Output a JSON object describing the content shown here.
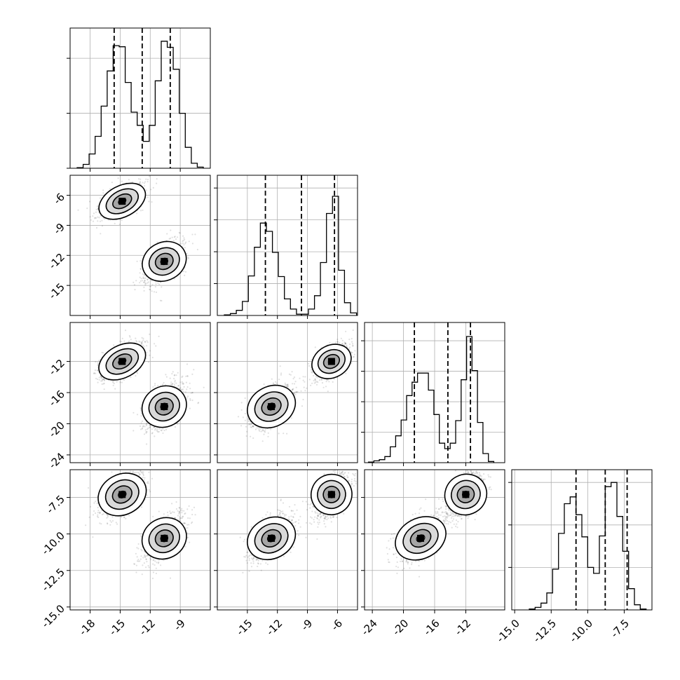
{
  "chart_data": {
    "type": "corner",
    "parameters": 4,
    "grid": true,
    "histograms": [
      {
        "param": 0,
        "range": [
          -20,
          -6
        ],
        "yticks": [
          0,
          1,
          2
        ],
        "ymax": 2.55,
        "bin_edges": [
          -19.3,
          -18.7,
          -18.1,
          -17.5,
          -16.9,
          -16.3,
          -15.7,
          -15.1,
          -14.5,
          -13.9,
          -13.3,
          -12.7,
          -12.1,
          -11.5,
          -10.9,
          -10.3,
          -9.7,
          -9.1,
          -8.5,
          -7.9,
          -7.3,
          -6.7
        ],
        "counts": [
          0.01,
          0.07,
          0.26,
          0.58,
          1.13,
          1.77,
          2.23,
          2.21,
          1.56,
          1.02,
          0.78,
          0.49,
          0.78,
          1.59,
          2.31,
          2.2,
          1.8,
          1.0,
          0.38,
          0.09,
          0.02
        ],
        "quantiles": [
          -15.6,
          -12.8,
          -10.0
        ]
      },
      {
        "param": 1,
        "range": [
          -18,
          -4
        ],
        "yticks": [
          0.5,
          1,
          1.5,
          2
        ],
        "ymax": 2.2,
        "bin_edges": [
          -17.3,
          -16.7,
          -16.1,
          -15.5,
          -14.9,
          -14.3,
          -13.7,
          -13.1,
          -12.5,
          -11.9,
          -11.3,
          -10.7,
          -10.1,
          -9.5,
          -8.9,
          -8.3,
          -7.7,
          -7.1,
          -6.5,
          -5.9,
          -5.3,
          -4.7,
          -4.1
        ],
        "counts": [
          0.01,
          0.03,
          0.08,
          0.22,
          0.62,
          1.07,
          1.45,
          1.32,
          0.99,
          0.61,
          0.26,
          0.1,
          0.02,
          0.02,
          0.1,
          0.31,
          0.83,
          1.6,
          1.87,
          0.71,
          0.2,
          0.04
        ],
        "quantiles": [
          -13.2,
          -9.6,
          -6.3
        ]
      },
      {
        "param": 2,
        "range": [
          -25,
          -7
        ],
        "yticks": [
          0.5,
          1,
          1.5,
          2
        ],
        "ymax": 2.3,
        "bin_edges": [
          -24.5,
          -23.8,
          -23.1,
          -22.4,
          -21.7,
          -21.0,
          -20.3,
          -19.6,
          -18.9,
          -18.2,
          -17.5,
          -16.8,
          -16.1,
          -15.4,
          -14.7,
          -14.0,
          -13.3,
          -12.6,
          -11.9,
          -11.2,
          -10.5,
          -9.8,
          -9.1,
          -8.4
        ],
        "counts": [
          0.01,
          0.03,
          0.05,
          0.1,
          0.26,
          0.44,
          0.7,
          1.1,
          1.32,
          1.47,
          1.47,
          1.19,
          0.79,
          0.32,
          0.23,
          0.32,
          0.69,
          1.36,
          2.07,
          1.51,
          0.66,
          0.15,
          0.02
        ],
        "quantiles": [
          -18.6,
          -14.3,
          -11.4
        ]
      },
      {
        "param": 3,
        "range": [
          -15.2,
          -5.6
        ],
        "yticks": [
          0.5,
          1,
          1.5
        ],
        "ymax": 1.65,
        "bin_edges": [
          -14.0,
          -13.6,
          -13.2,
          -12.8,
          -12.4,
          -12.0,
          -11.6,
          -11.2,
          -10.8,
          -10.4,
          -10.0,
          -9.6,
          -9.2,
          -8.8,
          -8.4,
          -8.0,
          -7.6,
          -7.2,
          -6.8,
          -6.4,
          -6.0
        ],
        "counts": [
          0.01,
          0.03,
          0.08,
          0.2,
          0.48,
          0.9,
          1.25,
          1.33,
          1.12,
          0.86,
          0.5,
          0.43,
          0.87,
          1.45,
          1.5,
          1.1,
          0.69,
          0.25,
          0.06,
          0.01
        ],
        "quantiles": [
          -10.8,
          -8.8,
          -7.3
        ]
      }
    ],
    "scatter_panels": [
      {
        "x_param": 0,
        "y_param": 1,
        "x_range": [
          -20,
          -6
        ],
        "y_range": [
          -18,
          -4
        ]
      },
      {
        "x_param": 0,
        "y_param": 2,
        "x_range": [
          -20,
          -6
        ],
        "y_range": [
          -25,
          -7
        ]
      },
      {
        "x_param": 1,
        "y_param": 2,
        "x_range": [
          -18,
          -4
        ],
        "y_range": [
          -25,
          -7
        ]
      },
      {
        "x_param": 0,
        "y_param": 3,
        "x_range": [
          -20,
          -6
        ],
        "y_range": [
          -15.2,
          -5.6
        ]
      },
      {
        "x_param": 1,
        "y_param": 3,
        "x_range": [
          -18,
          -4
        ],
        "y_range": [
          -15.2,
          -5.6
        ]
      },
      {
        "x_param": 2,
        "y_param": 3,
        "x_range": [
          -25,
          -7
        ],
        "y_range": [
          -15.2,
          -5.6
        ]
      }
    ],
    "modes": [
      {
        "center": [
          -14.8,
          -6.6,
          -12.0,
          -7.3
        ],
        "sd": [
          1.1,
          0.9,
          1.2,
          0.8
        ]
      },
      {
        "center": [
          -10.6,
          -12.6,
          -17.8,
          -10.3
        ],
        "sd": [
          1.0,
          1.1,
          1.5,
          0.8
        ]
      }
    ],
    "tick_labels": {
      "p0": [
        "-18",
        "-15",
        "-12",
        "-9"
      ],
      "p1": [
        "-6",
        "-9",
        "-12",
        "-15"
      ],
      "p1_x": [
        "-15",
        "-12",
        "-9",
        "-6"
      ],
      "p2": [
        "-12",
        "-16",
        "-20",
        "-24"
      ],
      "p2_x": [
        "-24",
        "-20",
        "-16",
        "-12"
      ],
      "p3": [
        "-7.5",
        "-10.0",
        "-12.5",
        "-15.0"
      ],
      "p3_x": [
        "-15.0",
        "-12.5",
        "-10.0",
        "-7.5"
      ]
    },
    "tick_values": {
      "p0": [
        -18,
        -15,
        -12,
        -9
      ],
      "p1_y": [
        -6,
        -9,
        -12,
        -15
      ],
      "p1_x": [
        -15,
        -12,
        -9,
        -6
      ],
      "p2_y": [
        -12,
        -16,
        -20,
        -24
      ],
      "p2_x": [
        -24,
        -20,
        -16,
        -12
      ],
      "p3_y": [
        -7.5,
        -10.0,
        -12.5,
        -15.0
      ],
      "p3_x": [
        -15.0,
        -12.5,
        -10.0,
        -7.5
      ]
    }
  }
}
